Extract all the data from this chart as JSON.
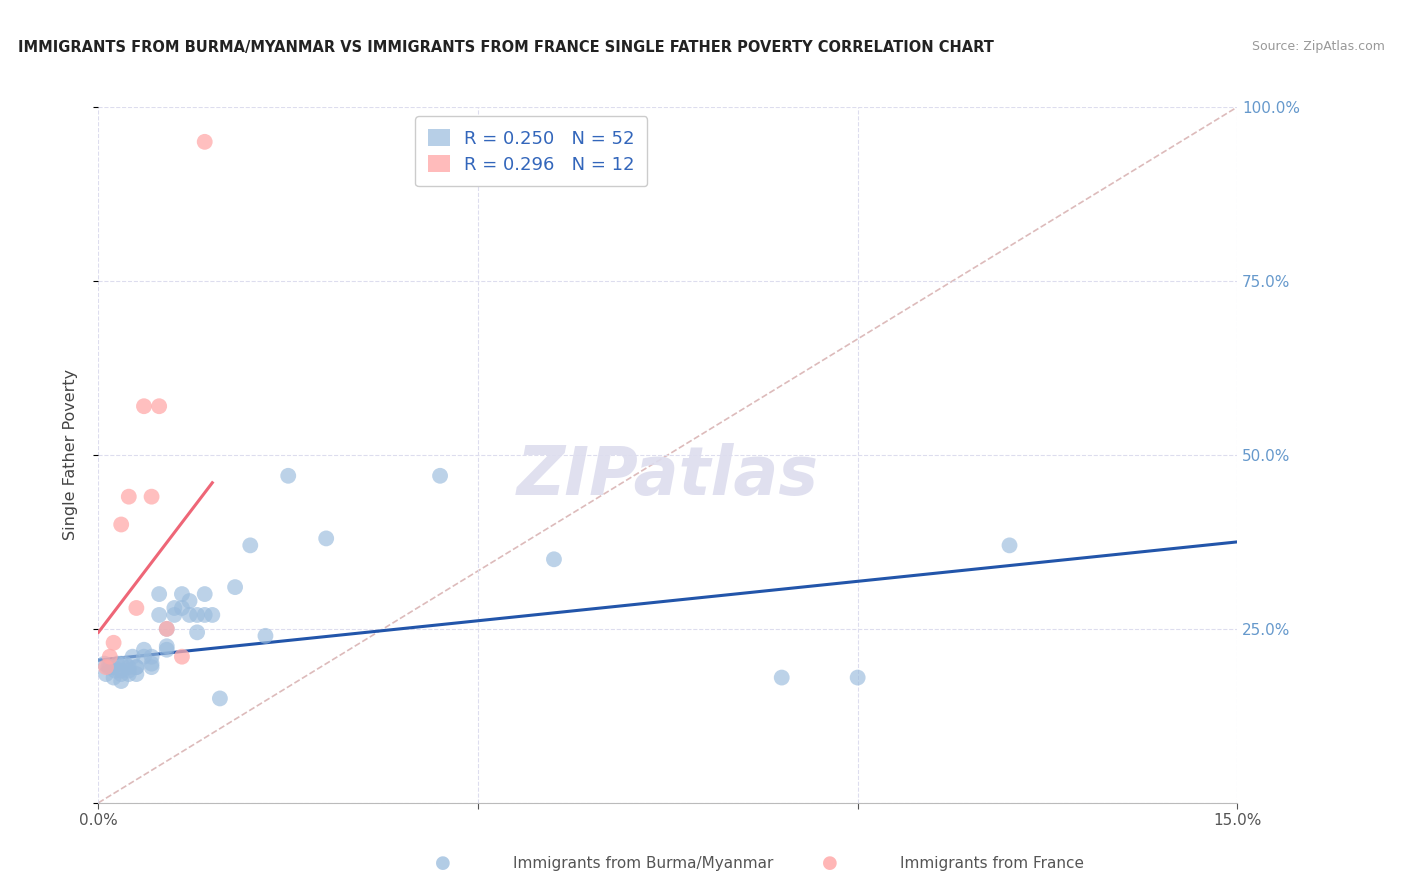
{
  "title": "IMMIGRANTS FROM BURMA/MYANMAR VS IMMIGRANTS FROM FRANCE SINGLE FATHER POVERTY CORRELATION CHART",
  "source": "Source: ZipAtlas.com",
  "ylabel": "Single Father Poverty",
  "xlim": [
    0,
    0.15
  ],
  "ylim": [
    0,
    1.0
  ],
  "x_ticks": [
    0.0,
    0.05,
    0.1,
    0.15
  ],
  "y_ticks": [
    0.0,
    0.25,
    0.5,
    0.75,
    1.0
  ],
  "legend1_label": "Immigrants from Burma/Myanmar",
  "legend2_label": "Immigrants from France",
  "R1": 0.25,
  "N1": 52,
  "R2": 0.296,
  "N2": 12,
  "color_blue": "#99BBDD",
  "color_pink": "#FFAAAA",
  "color_blue_line": "#2255AA",
  "color_pink_line": "#EE6677",
  "color_dashed": "#DDBBBB",
  "blue_x": [
    0.0008,
    0.001,
    0.0013,
    0.0015,
    0.002,
    0.002,
    0.0022,
    0.0025,
    0.003,
    0.003,
    0.003,
    0.003,
    0.0035,
    0.004,
    0.004,
    0.004,
    0.0045,
    0.005,
    0.005,
    0.005,
    0.006,
    0.006,
    0.007,
    0.007,
    0.007,
    0.008,
    0.008,
    0.009,
    0.009,
    0.009,
    0.01,
    0.01,
    0.011,
    0.011,
    0.012,
    0.012,
    0.013,
    0.013,
    0.014,
    0.014,
    0.015,
    0.016,
    0.018,
    0.02,
    0.022,
    0.025,
    0.03,
    0.045,
    0.06,
    0.09,
    0.1,
    0.12
  ],
  "blue_y": [
    0.2,
    0.185,
    0.195,
    0.195,
    0.195,
    0.18,
    0.19,
    0.2,
    0.2,
    0.19,
    0.185,
    0.175,
    0.2,
    0.195,
    0.19,
    0.185,
    0.21,
    0.195,
    0.185,
    0.195,
    0.21,
    0.22,
    0.195,
    0.2,
    0.21,
    0.3,
    0.27,
    0.22,
    0.225,
    0.25,
    0.28,
    0.27,
    0.28,
    0.3,
    0.27,
    0.29,
    0.27,
    0.245,
    0.3,
    0.27,
    0.27,
    0.15,
    0.31,
    0.37,
    0.24,
    0.47,
    0.38,
    0.47,
    0.35,
    0.18,
    0.18,
    0.37
  ],
  "pink_x": [
    0.001,
    0.0015,
    0.002,
    0.003,
    0.004,
    0.005,
    0.006,
    0.007,
    0.008,
    0.009,
    0.011,
    0.014
  ],
  "pink_y": [
    0.195,
    0.21,
    0.23,
    0.4,
    0.44,
    0.28,
    0.57,
    0.44,
    0.57,
    0.25,
    0.21,
    0.95
  ],
  "blue_line_x": [
    0.0,
    0.15
  ],
  "blue_line_y": [
    0.205,
    0.375
  ],
  "pink_line_x": [
    0.0,
    0.015
  ],
  "pink_line_y": [
    0.245,
    0.46
  ],
  "dashed_line_x": [
    0.0,
    0.15
  ],
  "dashed_line_y": [
    0.0,
    1.0
  ],
  "background_color": "#FFFFFF",
  "grid_color": "#DDDDEE"
}
